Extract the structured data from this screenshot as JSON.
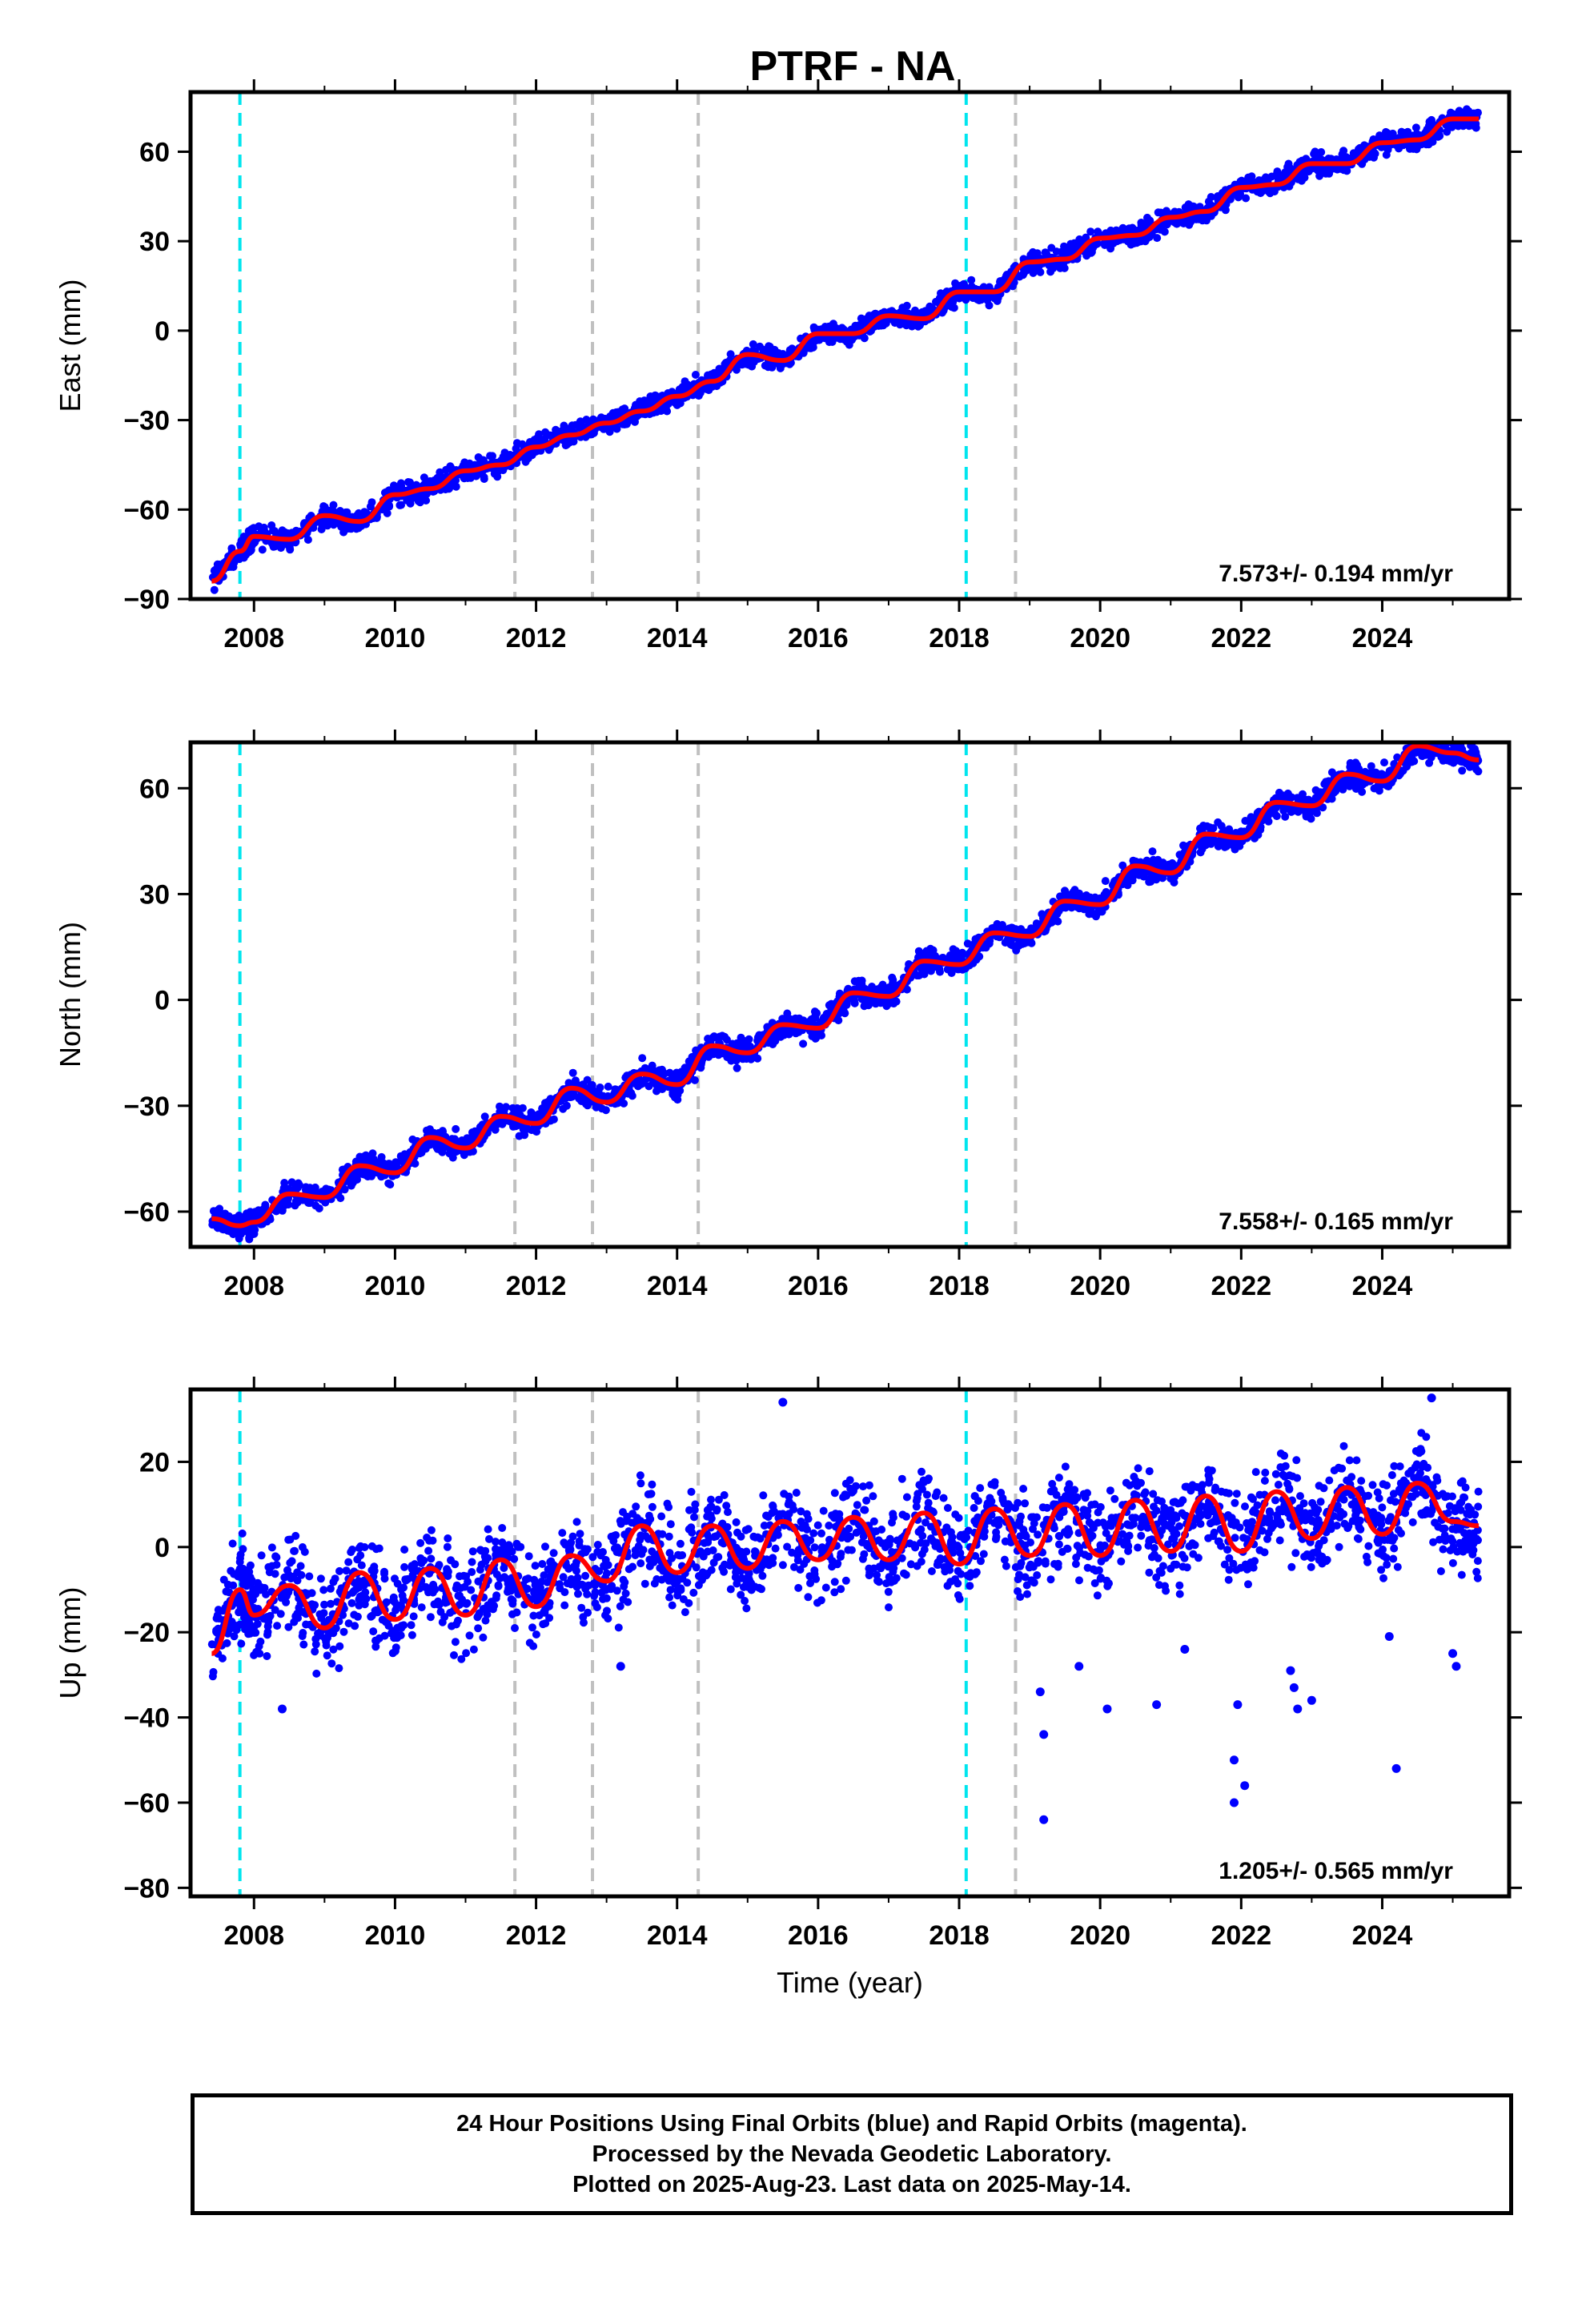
{
  "colors": {
    "data_points": "#0000ff",
    "fit_line": "#ff0000",
    "cyan_marker": "#00e5ee",
    "gray_marker": "#c0c0c0"
  },
  "footer": {
    "line1": "24 Hour Positions Using Final Orbits (blue) and Rapid Orbits (magenta).",
    "line2": "Processed by the Nevada Geodetic Laboratory.",
    "line3": "Plotted on 2025-Aug-23. Last data on 2025-May-14."
  },
  "chart_data": [
    {
      "type": "scatter",
      "title": "PTRF - NA",
      "xlabel": "",
      "ylabel": "East (mm)",
      "xlim": [
        2007.1,
        2025.8
      ],
      "ylim": [
        -90,
        80
      ],
      "xticks": [
        2008,
        2010,
        2012,
        2014,
        2016,
        2018,
        2020,
        2022,
        2024
      ],
      "yticks": [
        -90,
        -60,
        -30,
        0,
        30,
        60
      ],
      "rate_label": "7.573+/- 0.194 mm/yr",
      "markers_cyan": [
        2007.8,
        2018.1
      ],
      "markers_gray": [
        2011.7,
        2012.8,
        2014.3,
        2018.8
      ],
      "series": [
        {
          "x": [
            2007.4,
            2007.8,
            2008.0,
            2008.5,
            2009.0,
            2009.5,
            2010.0,
            2010.5,
            2011.0,
            2011.5,
            2012.0,
            2012.5,
            2013.0,
            2013.5,
            2014.0,
            2014.5,
            2015.0,
            2015.5,
            2016.0,
            2016.5,
            2017.0,
            2017.5,
            2018.0,
            2018.5,
            2019.0,
            2019.5,
            2020.0,
            2020.5,
            2021.0,
            2021.5,
            2022.0,
            2022.5,
            2023.0,
            2023.5,
            2024.0,
            2024.5,
            2025.0,
            2025.37
          ],
          "y": [
            -84,
            -74,
            -69,
            -70,
            -62,
            -64,
            -55,
            -53,
            -47,
            -45,
            -39,
            -35,
            -31,
            -27,
            -22,
            -17,
            -8,
            -10,
            -1,
            -1,
            5,
            4,
            13,
            13,
            23,
            24,
            31,
            32,
            38,
            40,
            48,
            49,
            56,
            56,
            63,
            64,
            71,
            71
          ]
        }
      ]
    },
    {
      "type": "scatter",
      "title": "",
      "xlabel": "",
      "ylabel": "North (mm)",
      "xlim": [
        2007.1,
        2025.8
      ],
      "ylim": [
        -70,
        73
      ],
      "xticks": [
        2008,
        2010,
        2012,
        2014,
        2016,
        2018,
        2020,
        2022,
        2024
      ],
      "yticks": [
        -60,
        -30,
        0,
        30,
        60
      ],
      "rate_label": "7.558+/- 0.165 mm/yr",
      "markers_cyan": [
        2007.8,
        2018.1
      ],
      "markers_gray": [
        2011.7,
        2012.8,
        2014.3,
        2018.8
      ],
      "series": [
        {
          "x": [
            2007.4,
            2007.8,
            2008.0,
            2008.5,
            2009.0,
            2009.5,
            2010.0,
            2010.5,
            2011.0,
            2011.5,
            2012.0,
            2012.5,
            2013.0,
            2013.5,
            2014.0,
            2014.5,
            2015.0,
            2015.5,
            2016.0,
            2016.5,
            2017.0,
            2017.5,
            2018.0,
            2018.5,
            2019.0,
            2019.5,
            2020.0,
            2020.5,
            2021.0,
            2021.5,
            2022.0,
            2022.5,
            2023.0,
            2023.5,
            2024.0,
            2024.5,
            2025.0,
            2025.37
          ],
          "y": [
            -62,
            -64,
            -63,
            -55,
            -56,
            -47,
            -49,
            -39,
            -42,
            -33,
            -35,
            -25,
            -29,
            -21,
            -24,
            -13,
            -15,
            -7,
            -8,
            2,
            1,
            11,
            10,
            19,
            18,
            28,
            27,
            38,
            36,
            47,
            46,
            56,
            55,
            64,
            62,
            72,
            70,
            68
          ]
        }
      ]
    },
    {
      "type": "scatter",
      "title": "",
      "xlabel": "Time (year)",
      "ylabel": "Up (mm)",
      "xlim": [
        2007.1,
        2025.8
      ],
      "ylim": [
        -82,
        37
      ],
      "xticks": [
        2008,
        2010,
        2012,
        2014,
        2016,
        2018,
        2020,
        2022,
        2024
      ],
      "yticks": [
        -80,
        -60,
        -40,
        -20,
        0,
        20
      ],
      "rate_label": "1.205+/- 0.565 mm/yr",
      "markers_cyan": [
        2007.8,
        2018.1
      ],
      "markers_gray": [
        2011.7,
        2012.8,
        2014.3,
        2018.8
      ],
      "series": [
        {
          "x": [
            2007.4,
            2007.8,
            2008.0,
            2008.5,
            2009.0,
            2009.5,
            2010.0,
            2010.5,
            2011.0,
            2011.5,
            2012.0,
            2012.5,
            2013.0,
            2013.5,
            2014.0,
            2014.5,
            2015.0,
            2015.5,
            2016.0,
            2016.5,
            2017.0,
            2017.5,
            2018.0,
            2018.5,
            2019.0,
            2019.5,
            2020.0,
            2020.5,
            2021.0,
            2021.5,
            2022.0,
            2022.5,
            2023.0,
            2023.5,
            2024.0,
            2024.5,
            2025.0,
            2025.37
          ],
          "y": [
            -25,
            -10,
            -16,
            -9,
            -19,
            -6,
            -17,
            -5,
            -16,
            -3,
            -14,
            -2,
            -8,
            5,
            -6,
            5,
            -5,
            6,
            -3,
            7,
            -3,
            8,
            -4,
            9,
            -2,
            10,
            -2,
            11,
            -1,
            12,
            -1,
            13,
            2,
            14,
            3,
            15,
            6,
            5
          ]
        }
      ],
      "outliers": [
        {
          "x": 2019.15,
          "y": -34
        },
        {
          "x": 2019.2,
          "y": -44
        },
        {
          "x": 2019.2,
          "y": -64
        },
        {
          "x": 2019.7,
          "y": -28
        },
        {
          "x": 2020.1,
          "y": -38
        },
        {
          "x": 2020.8,
          "y": -37
        },
        {
          "x": 2021.2,
          "y": -24
        },
        {
          "x": 2021.9,
          "y": -50
        },
        {
          "x": 2021.9,
          "y": -60
        },
        {
          "x": 2021.95,
          "y": -37
        },
        {
          "x": 2022.05,
          "y": -56
        },
        {
          "x": 2022.7,
          "y": -29
        },
        {
          "x": 2022.75,
          "y": -33
        },
        {
          "x": 2022.8,
          "y": -38
        },
        {
          "x": 2023.0,
          "y": -36
        },
        {
          "x": 2024.1,
          "y": -21
        },
        {
          "x": 2024.2,
          "y": -52
        },
        {
          "x": 2025.0,
          "y": -25
        },
        {
          "x": 2025.05,
          "y": -28
        },
        {
          "x": 2024.7,
          "y": 35
        },
        {
          "x": 2015.5,
          "y": 34
        },
        {
          "x": 2008.4,
          "y": -38
        },
        {
          "x": 2013.2,
          "y": -28
        }
      ]
    }
  ]
}
